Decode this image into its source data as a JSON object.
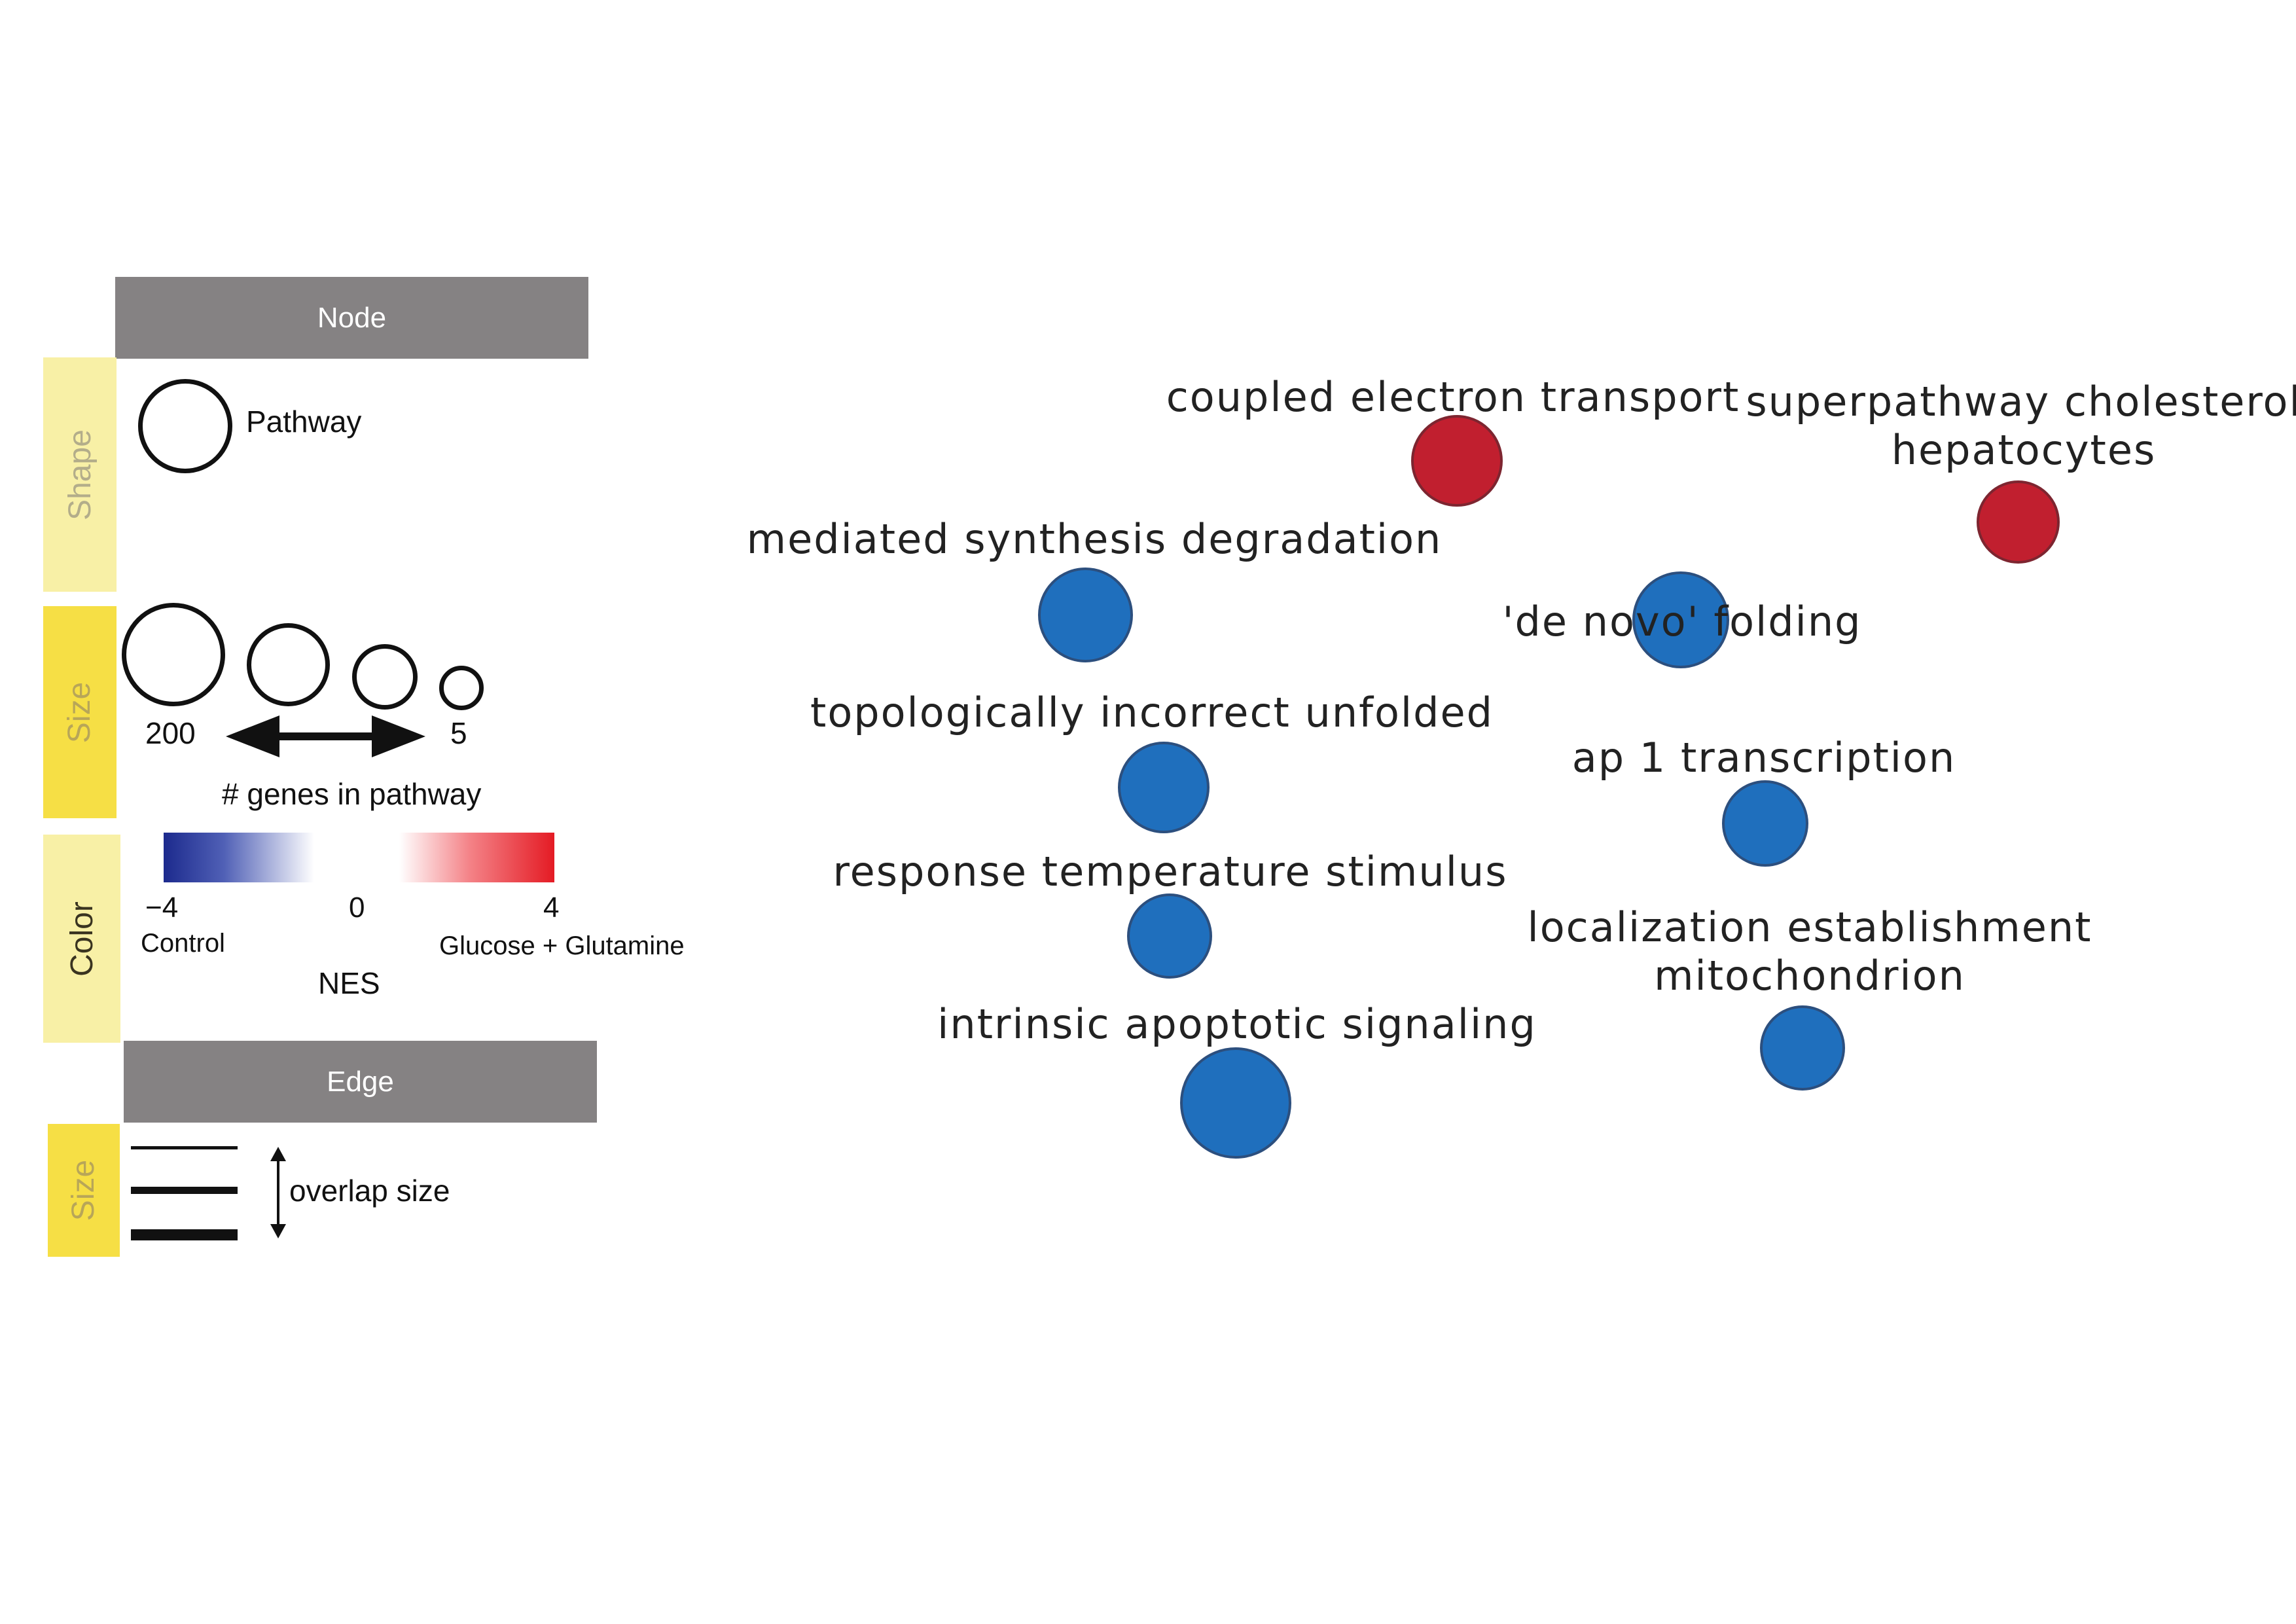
{
  "legend": {
    "node_header": "Node",
    "edge_header": "Edge",
    "shape_label": "Shape",
    "size_label": "Size",
    "color_label": "Color",
    "edge_size_label": "Size",
    "pathway_label": "Pathway",
    "size_max": "200",
    "size_min": "5",
    "genes_label": "# genes in pathway",
    "nes_min": "−4",
    "nes_mid": "0",
    "nes_max": "4",
    "control_label": "Control",
    "treatment_label": "Glucose + Glutamine",
    "nes_label": "NES",
    "overlap_label": "overlap size"
  },
  "colors": {
    "negative_node": "#1f6fbd",
    "positive_node": "#c11f2f",
    "node_header_bg": "#858283",
    "pale_yellow": "#f8f0a6",
    "bright_yellow": "#f6df45"
  },
  "network": {
    "nodes": [
      {
        "label_lines": [
          "coupled electron transport"
        ],
        "nes_sign": "positive"
      },
      {
        "label_lines": [
          "superpathway cholesterol",
          "hepatocytes"
        ],
        "nes_sign": "positive"
      },
      {
        "label_lines": [
          "mediated synthesis degradation"
        ],
        "nes_sign": "negative"
      },
      {
        "label_lines": [
          "'de novo' folding"
        ],
        "nes_sign": "negative"
      },
      {
        "label_lines": [
          "topologically incorrect unfolded"
        ],
        "nes_sign": "negative"
      },
      {
        "label_lines": [
          "ap 1 transcription"
        ],
        "nes_sign": "negative"
      },
      {
        "label_lines": [
          "response temperature stimulus"
        ],
        "nes_sign": "negative"
      },
      {
        "label_lines": [
          "localization establishment",
          "mitochondrion"
        ],
        "nes_sign": "negative"
      },
      {
        "label_lines": [
          "intrinsic apoptotic signaling"
        ],
        "nes_sign": "negative"
      }
    ]
  }
}
